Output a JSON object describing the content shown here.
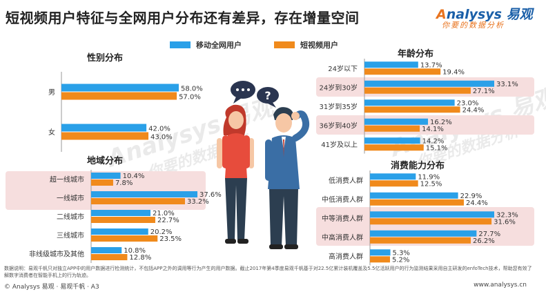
{
  "title": "短视频用户特征与全网用户分布还有差异，存在增量空间",
  "logo": {
    "brand_a": "A",
    "brand_rest": "nalysys 易观",
    "slogan": "你要的数据分析"
  },
  "legend": [
    {
      "name": "移动全网用户",
      "color": "#2aa0e8"
    },
    {
      "name": "短视频用户",
      "color": "#f08a1c"
    }
  ],
  "watermark": {
    "brand": "Analysys 易观",
    "slogan": "你要的数据分析"
  },
  "colors": {
    "mobile": "#2aa0e8",
    "short_video": "#f08a1c",
    "highlight": "#f6dede"
  },
  "chart_data": [
    {
      "type": "bar",
      "orientation": "horizontal",
      "title": "性别分布",
      "categories": [
        "男",
        "女"
      ],
      "series": [
        {
          "name": "移动全网用户",
          "values": [
            58.0,
            42.0
          ]
        },
        {
          "name": "短视频用户",
          "values": [
            57.0,
            43.0
          ]
        }
      ],
      "labels": [
        [
          "58.0%",
          "42.0%"
        ],
        [
          "57.0%",
          "43.0%"
        ]
      ],
      "highlight": []
    },
    {
      "type": "bar",
      "orientation": "horizontal",
      "title": "地域分布",
      "categories": [
        "超一线城市",
        "一线城市",
        "二线城市",
        "三线城市",
        "非线级城市及其他"
      ],
      "series": [
        {
          "name": "移动全网用户",
          "values": [
            10.4,
            37.6,
            21.0,
            20.2,
            10.8
          ]
        },
        {
          "name": "短视频用户",
          "values": [
            7.8,
            33.2,
            22.7,
            23.5,
            12.8
          ]
        }
      ],
      "labels": [
        [
          "10.4%",
          "37.6%",
          "21.0%",
          "20.2%",
          "10.8%"
        ],
        [
          "7.8%",
          "33.2%",
          "22.7%",
          "23.5%",
          "12.8%"
        ]
      ],
      "highlight": [
        0,
        1
      ]
    },
    {
      "type": "bar",
      "orientation": "horizontal",
      "title": "年龄分布",
      "categories": [
        "24岁以下",
        "24岁到30岁",
        "31岁到35岁",
        "36岁到40岁",
        "41岁及以上"
      ],
      "series": [
        {
          "name": "移动全网用户",
          "values": [
            13.7,
            33.1,
            23.0,
            16.2,
            14.2
          ]
        },
        {
          "name": "短视频用户",
          "values": [
            19.4,
            27.1,
            24.4,
            14.1,
            15.1
          ]
        }
      ],
      "labels": [
        [
          "13.7%",
          "33.1%",
          "23.0%",
          "16.2%",
          "14.2%"
        ],
        [
          "19.4%",
          "27.1%",
          "24.4%",
          "14.1%",
          "15.1%"
        ]
      ],
      "highlight": [
        1,
        3
      ]
    },
    {
      "type": "bar",
      "orientation": "horizontal",
      "title": "消费能力分布",
      "categories": [
        "低消费人群",
        "中低消费人群",
        "中等消费人群",
        "中高消费人群",
        "高消费人群"
      ],
      "series": [
        {
          "name": "移动全网用户",
          "values": [
            11.9,
            22.9,
            32.3,
            27.7,
            5.3
          ]
        },
        {
          "name": "短视频用户",
          "values": [
            12.5,
            24.4,
            31.6,
            26.2,
            5.2
          ]
        }
      ],
      "labels": [
        [
          "11.9%",
          "22.9%",
          "32.3%",
          "27.7%",
          "5.3%"
        ],
        [
          "12.5%",
          "24.4%",
          "31.6%",
          "26.2%",
          "5.2%"
        ]
      ],
      "highlight": [
        2,
        3
      ]
    }
  ],
  "footnote": "数据说明：易观千帆只对独立APP中的用户数据进行检测统计，不包括APP之外的调用等行为产生的用户数据。截止2017年第4季度易观千帆基于对22.5亿累计装机覆盖及5.5亿活跃用户的行为监测结果采用自主研发的enfoTech技术，帮助您有效了解数字消费者在智能手机上的行为轨迹。",
  "footer": {
    "left": "© Analysys 易观 · 易观千帆 · A3",
    "right": "www.analysys.cn"
  }
}
